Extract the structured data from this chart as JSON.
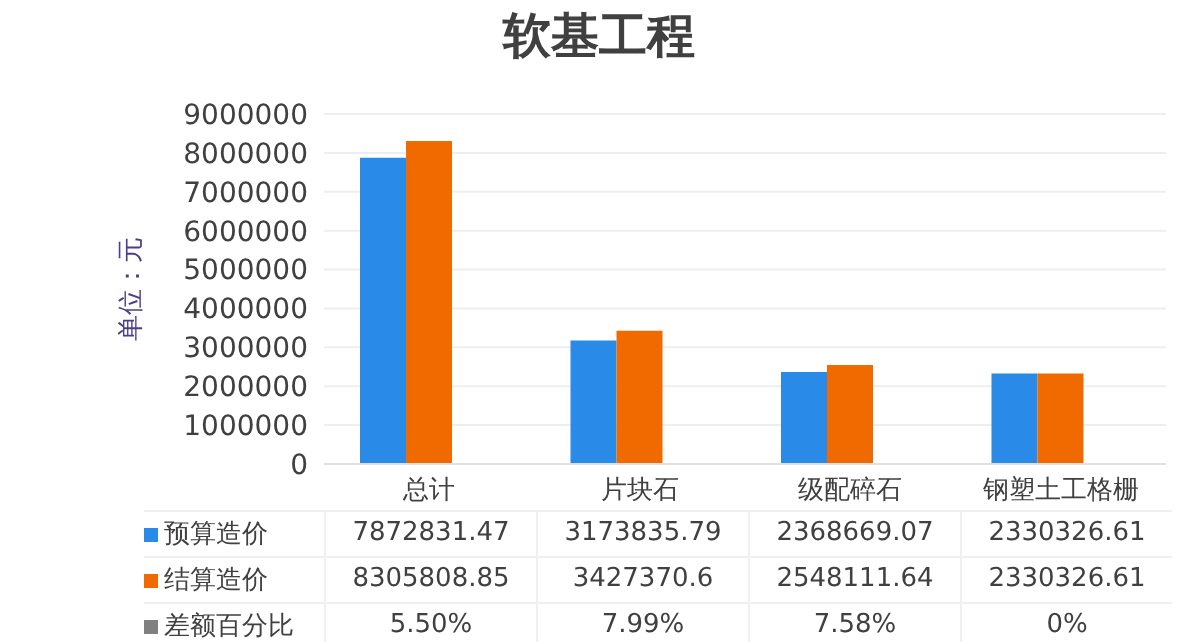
{
  "chart_data": {
    "type": "bar",
    "title": "软基工程",
    "ylabel": "单位：元",
    "categories": [
      "总计",
      "片块石",
      "级配碎石",
      "钢塑土工格栅"
    ],
    "series": [
      {
        "name": "预算造价",
        "color": "#2a8ae8",
        "values": [
          7872831.47,
          3173835.79,
          2368669.07,
          2330326.61
        ]
      },
      {
        "name": "结算造价",
        "color": "#f06a00",
        "values": [
          8305808.85,
          3427370.6,
          2548111.64,
          2330326.61
        ]
      },
      {
        "name": "差额百分比",
        "color": "#808080",
        "values": [
          0.055,
          0.0799,
          0.0758,
          0
        ],
        "value_labels": [
          "5.50%",
          "7.99%",
          "7.58%",
          "0%"
        ]
      }
    ],
    "ylim": [
      0,
      9000000
    ],
    "yticks": [
      0,
      1000000,
      2000000,
      3000000,
      4000000,
      5000000,
      6000000,
      7000000,
      8000000,
      9000000
    ],
    "grid": "y",
    "legend": "bottom",
    "data_labels": true
  }
}
